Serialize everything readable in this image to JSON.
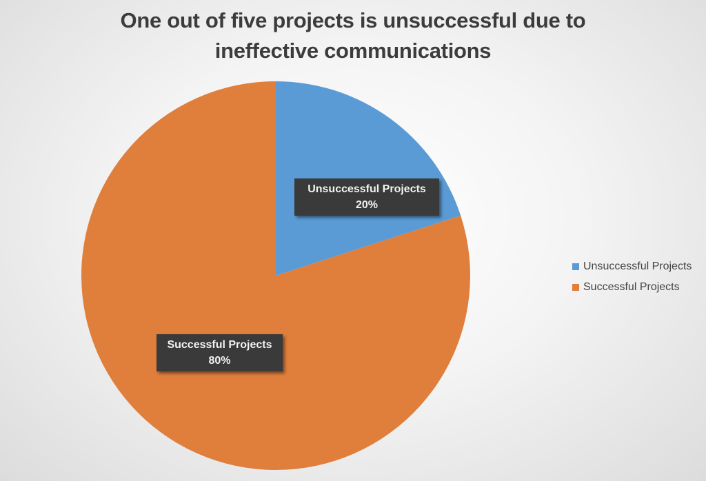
{
  "chart_data": {
    "type": "pie",
    "title": "One out of five projects is unsuccessful due to ineffective communications",
    "title_lines": [
      "One out of five projects is unsuccessful due to",
      "ineffective communications"
    ],
    "categories": [
      "Unsuccessful Projects",
      "Successful Projects"
    ],
    "values": [
      20,
      80
    ],
    "unit": "%",
    "colors": [
      "#5b9bd5",
      "#e07e3c"
    ],
    "data_labels": [
      {
        "name": "Unsuccessful Projects",
        "value": "20%"
      },
      {
        "name": "Successful Projects",
        "value": "80%"
      }
    ],
    "legend": {
      "position": "right",
      "entries": [
        "Unsuccessful Projects",
        "Successful Projects"
      ]
    },
    "start_angle_deg": 0,
    "direction": "clockwise"
  }
}
